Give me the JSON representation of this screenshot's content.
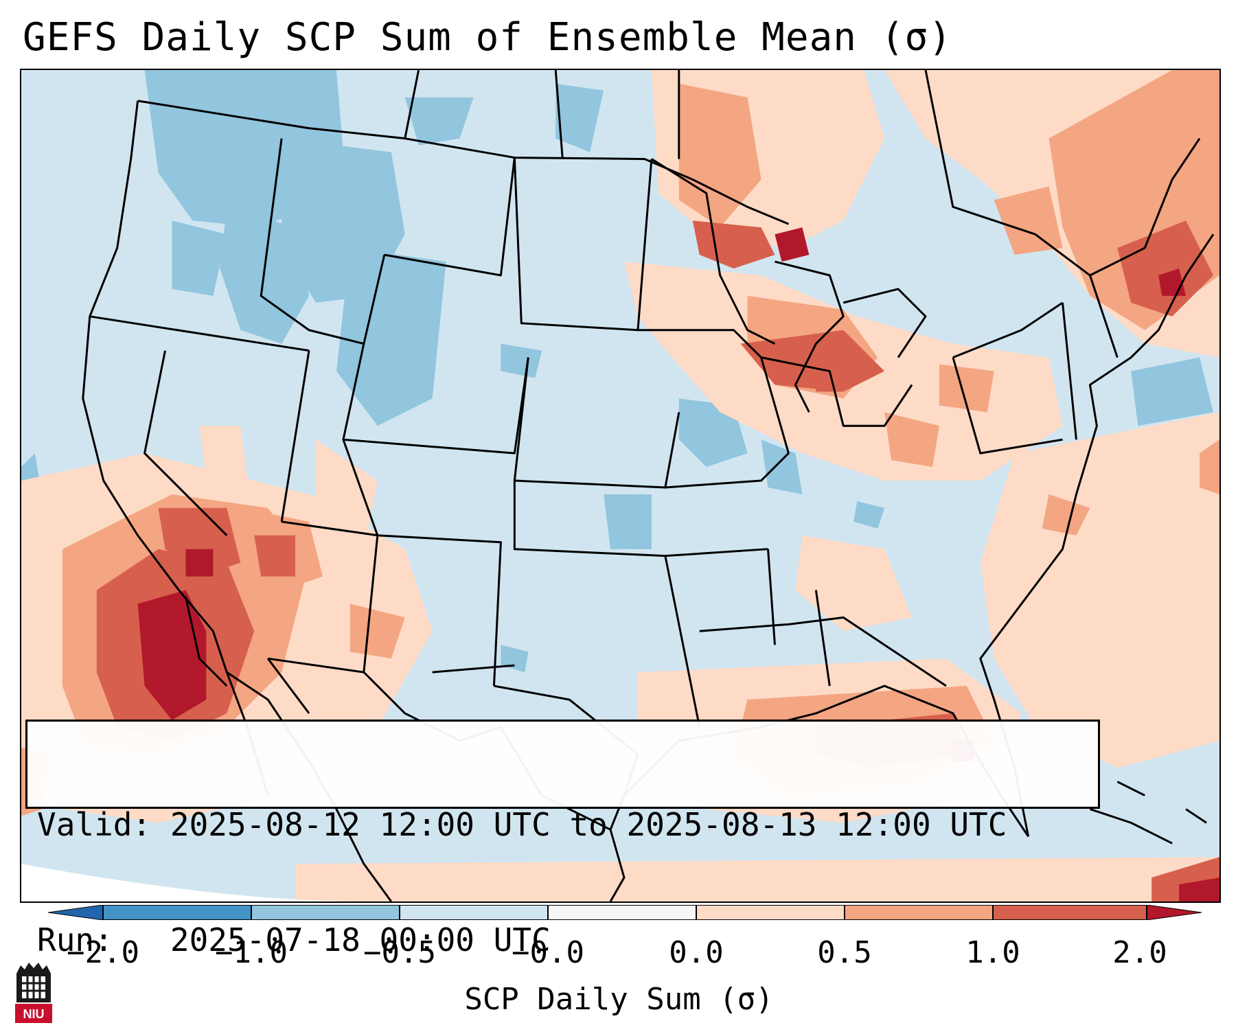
{
  "title": "GEFS Daily SCP Sum of Ensemble Mean (σ)",
  "info": {
    "valid_label": "Valid:",
    "valid_value": "2025-08-12 12:00 UTC to 2025-08-13 12:00 UTC",
    "run_label": "Run:",
    "run_value": "2025-07-18 00:00 UTC"
  },
  "colorbar": {
    "label": "SCP Daily Sum (σ)",
    "ticks": [
      "−2.0",
      "−1.0",
      "−0.5",
      "−0.0",
      "0.0",
      "0.5",
      "1.0",
      "2.0"
    ],
    "colors": [
      "#4292c6",
      "#92c5de",
      "#d1e5f0",
      "#f7f7f7",
      "#fddbc7",
      "#f4a582",
      "#d6604d",
      "#b2182b"
    ],
    "extend_low_color": "#2166ac",
    "extend_high_color": "#b2182b"
  },
  "logo": {
    "text": "NIU",
    "color": "#c8102e"
  }
}
